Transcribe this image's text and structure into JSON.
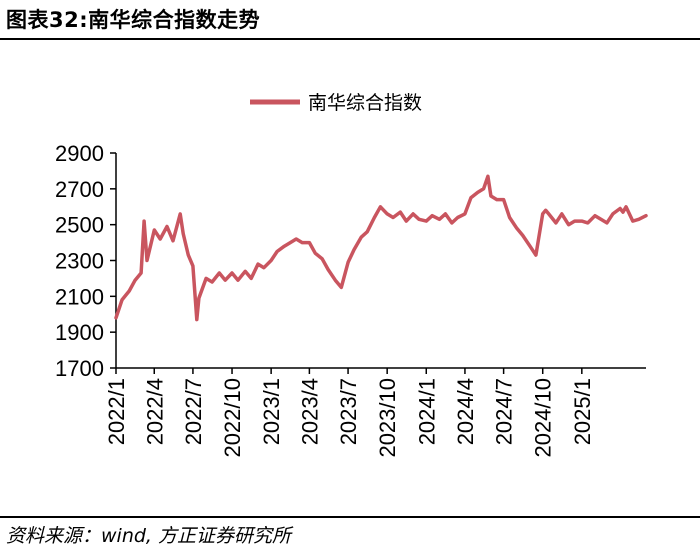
{
  "figure": {
    "title": "图表32:南华综合指数走势",
    "source": "资料来源：wind, 方正证券研究所"
  },
  "colors": {
    "series": "#c9555f",
    "axis": "#000000",
    "background": "#ffffff"
  },
  "chart_data": {
    "type": "line",
    "title": "",
    "xlabel": "",
    "ylabel": "",
    "ylim": [
      1700,
      2900
    ],
    "yticks": [
      1700,
      1900,
      2100,
      2300,
      2500,
      2700,
      2900
    ],
    "xlim": [
      "2022-01",
      "2025-06"
    ],
    "xticks": [
      "2022/1",
      "2022/4",
      "2022/7",
      "2022/10",
      "2023/1",
      "2023/4",
      "2023/7",
      "2023/10",
      "2024/1",
      "2024/4",
      "2024/7",
      "2024/10",
      "2025/1"
    ],
    "grid": false,
    "legend": "top-center",
    "series": [
      {
        "name": "南华综合指数",
        "x": [
          "2022-01-01",
          "2022-01-15",
          "2022-02-01",
          "2022-02-15",
          "2022-03-01",
          "2022-03-08",
          "2022-03-15",
          "2022-04-01",
          "2022-04-15",
          "2022-05-01",
          "2022-05-15",
          "2022-06-01",
          "2022-06-08",
          "2022-06-20",
          "2022-07-01",
          "2022-07-10",
          "2022-07-15",
          "2022-08-01",
          "2022-08-15",
          "2022-09-01",
          "2022-09-15",
          "2022-10-01",
          "2022-10-15",
          "2022-11-01",
          "2022-11-15",
          "2022-12-01",
          "2022-12-15",
          "2023-01-01",
          "2023-01-15",
          "2023-02-01",
          "2023-02-15",
          "2023-03-01",
          "2023-03-15",
          "2023-04-01",
          "2023-04-15",
          "2023-05-01",
          "2023-05-15",
          "2023-06-01",
          "2023-06-15",
          "2023-07-01",
          "2023-07-15",
          "2023-08-01",
          "2023-08-15",
          "2023-09-01",
          "2023-09-15",
          "2023-10-01",
          "2023-10-15",
          "2023-11-01",
          "2023-11-15",
          "2023-12-01",
          "2023-12-15",
          "2024-01-01",
          "2024-01-15",
          "2024-02-01",
          "2024-02-15",
          "2024-03-01",
          "2024-03-15",
          "2024-04-01",
          "2024-04-15",
          "2024-05-01",
          "2024-05-15",
          "2024-05-25",
          "2024-06-01",
          "2024-06-15",
          "2024-07-01",
          "2024-07-15",
          "2024-08-01",
          "2024-08-15",
          "2024-09-01",
          "2024-09-15",
          "2024-10-01",
          "2024-10-08",
          "2024-10-15",
          "2024-11-01",
          "2024-11-15",
          "2024-12-01",
          "2024-12-15",
          "2025-01-01",
          "2025-01-15",
          "2025-02-01",
          "2025-02-15",
          "2025-03-01",
          "2025-03-15",
          "2025-04-01",
          "2025-04-08",
          "2025-04-15",
          "2025-05-01",
          "2025-05-15",
          "2025-06-01"
        ],
        "values": [
          1980,
          2080,
          2130,
          2190,
          2230,
          2520,
          2300,
          2470,
          2420,
          2490,
          2410,
          2560,
          2450,
          2330,
          2270,
          1970,
          2090,
          2200,
          2180,
          2230,
          2190,
          2230,
          2190,
          2240,
          2200,
          2280,
          2260,
          2300,
          2350,
          2380,
          2400,
          2420,
          2400,
          2400,
          2340,
          2310,
          2250,
          2190,
          2150,
          2290,
          2360,
          2430,
          2460,
          2540,
          2600,
          2560,
          2540,
          2570,
          2520,
          2560,
          2530,
          2520,
          2550,
          2530,
          2560,
          2510,
          2540,
          2560,
          2650,
          2680,
          2700,
          2770,
          2660,
          2640,
          2640,
          2540,
          2480,
          2440,
          2380,
          2330,
          2560,
          2580,
          2560,
          2510,
          2560,
          2500,
          2520,
          2520,
          2510,
          2550,
          2530,
          2510,
          2560,
          2590,
          2570,
          2600,
          2520,
          2530,
          2550
        ]
      }
    ]
  }
}
